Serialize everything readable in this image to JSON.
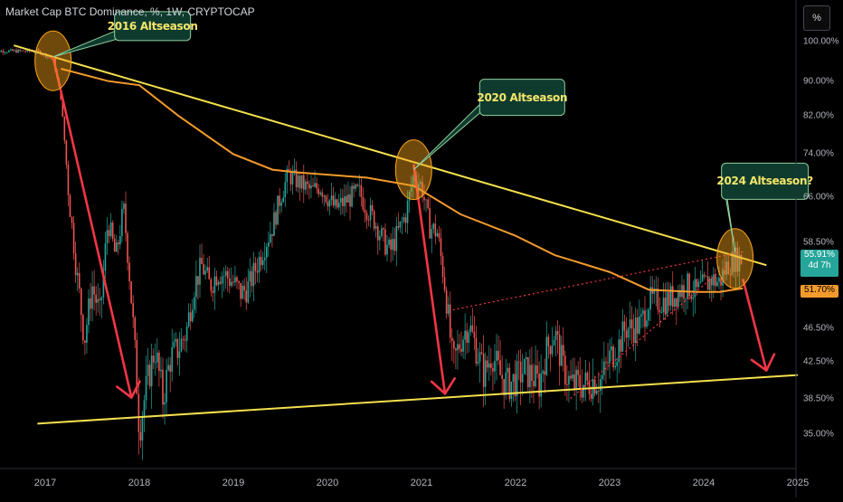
{
  "header": {
    "title": "Market Cap BTC Dominance, %, 1W, CRYPTOCAP",
    "scale_button": "%"
  },
  "last_price": {
    "value": "55.91%",
    "countdown": "4d 7h",
    "ma_value": "51.70%"
  },
  "colors": {
    "background": "#000000",
    "up_candle": "#26a69a",
    "down_candle": "#ef5350",
    "trendline": "#f4e04d",
    "moving_average": "#f39a2c",
    "arrow": "#f23645",
    "callout_fill": "#0f3b2e",
    "callout_border": "#8fd19e",
    "callout_text": "#f5e66a",
    "highlight_circle": "#f7a21b"
  },
  "chart_data": {
    "type": "candlestick",
    "title": "Market Cap BTC Dominance, %, 1W, CRYPTOCAP",
    "ylim": [
      33.8,
      103
    ],
    "yscale": "log",
    "y_ticks": [
      "100.00%",
      "90.00%",
      "82.00%",
      "74.00%",
      "66.00%",
      "58.50%",
      "46.50%",
      "42.50%",
      "38.50%",
      "35.00%"
    ],
    "x_ticks": [
      "2017",
      "2018",
      "2019",
      "2020",
      "2021",
      "2022",
      "2023",
      "2024",
      "2025"
    ],
    "close_series": [
      [
        "2016-06",
        97.5
      ],
      [
        "2016-12",
        97.5
      ],
      [
        "2017-02",
        95.5
      ],
      [
        "2017-03",
        86
      ],
      [
        "2017-04",
        66
      ],
      [
        "2017-05",
        54
      ],
      [
        "2017-06",
        45
      ],
      [
        "2017-07",
        52
      ],
      [
        "2017-08",
        48
      ],
      [
        "2017-09",
        62
      ],
      [
        "2017-10",
        56
      ],
      [
        "2017-11",
        64
      ],
      [
        "2017-12",
        50
      ],
      [
        "2018-01",
        35.5
      ],
      [
        "2018-02",
        40
      ],
      [
        "2018-03",
        44
      ],
      [
        "2018-04",
        38.5
      ],
      [
        "2018-05",
        43
      ],
      [
        "2018-06",
        44
      ],
      [
        "2018-07",
        46
      ],
      [
        "2018-08",
        52
      ],
      [
        "2018-09",
        55
      ],
      [
        "2018-10",
        52
      ],
      [
        "2018-11",
        54
      ],
      [
        "2018-12",
        53.5
      ],
      [
        "2019-01",
        52.5
      ],
      [
        "2019-02",
        51
      ],
      [
        "2019-03",
        52
      ],
      [
        "2019-04",
        55
      ],
      [
        "2019-05",
        58
      ],
      [
        "2019-06",
        61
      ],
      [
        "2019-07",
        66
      ],
      [
        "2019-08",
        70
      ],
      [
        "2019-09",
        69
      ],
      [
        "2019-10",
        68
      ],
      [
        "2019-11",
        67
      ],
      [
        "2019-12",
        68
      ],
      [
        "2020-01",
        66
      ],
      [
        "2020-02",
        64
      ],
      [
        "2020-03",
        65
      ],
      [
        "2020-04",
        66
      ],
      [
        "2020-05",
        67
      ],
      [
        "2020-06",
        64
      ],
      [
        "2020-07",
        62
      ],
      [
        "2020-08",
        59
      ],
      [
        "2020-09",
        57
      ],
      [
        "2020-10",
        60
      ],
      [
        "2020-11",
        63
      ],
      [
        "2020-12",
        70
      ],
      [
        "2021-01",
        68
      ],
      [
        "2021-02",
        61
      ],
      [
        "2021-03",
        60
      ],
      [
        "2021-04",
        52
      ],
      [
        "2021-05",
        42
      ],
      [
        "2021-06",
        45
      ],
      [
        "2021-07",
        47
      ],
      [
        "2021-08",
        44
      ],
      [
        "2021-09",
        41
      ],
      [
        "2021-10",
        43.5
      ],
      [
        "2021-11",
        41
      ],
      [
        "2021-12",
        40
      ],
      [
        "2022-01",
        40.5
      ],
      [
        "2022-02",
        41.5
      ],
      [
        "2022-03",
        41
      ],
      [
        "2022-04",
        40
      ],
      [
        "2022-05",
        44
      ],
      [
        "2022-06",
        46
      ],
      [
        "2022-07",
        42
      ],
      [
        "2022-08",
        40
      ],
      [
        "2022-09",
        40
      ],
      [
        "2022-10",
        40
      ],
      [
        "2022-11",
        40.5
      ],
      [
        "2022-12",
        40.5
      ],
      [
        "2023-01",
        43
      ],
      [
        "2023-02",
        44
      ],
      [
        "2023-03",
        46.5
      ],
      [
        "2023-04",
        46.5
      ],
      [
        "2023-05",
        47
      ],
      [
        "2023-06",
        50
      ],
      [
        "2023-07",
        50
      ],
      [
        "2023-08",
        50
      ],
      [
        "2023-09",
        50.5
      ],
      [
        "2023-10",
        51.5
      ],
      [
        "2023-11",
        52
      ],
      [
        "2023-12",
        51
      ],
      [
        "2024-01",
        52
      ],
      [
        "2024-02",
        53
      ],
      [
        "2024-03",
        52.5
      ],
      [
        "2024-04",
        55
      ],
      [
        "2024-05",
        56
      ],
      [
        "2024-06",
        55.9
      ]
    ],
    "moving_average": [
      [
        "2017-03",
        93
      ],
      [
        "2017-09",
        90
      ],
      [
        "2018-01",
        89
      ],
      [
        "2018-06",
        82
      ],
      [
        "2019-01",
        74
      ],
      [
        "2019-06",
        71
      ],
      [
        "2019-09",
        70.5
      ],
      [
        "2020-06",
        69.5
      ],
      [
        "2020-12",
        68
      ],
      [
        "2021-06",
        63
      ],
      [
        "2022-01",
        59.5
      ],
      [
        "2022-06",
        56.5
      ],
      [
        "2023-01",
        54
      ],
      [
        "2023-06",
        51.5
      ],
      [
        "2023-12",
        51.2
      ],
      [
        "2024-03",
        51.2
      ],
      [
        "2024-06",
        51.7
      ]
    ],
    "trendlines": [
      {
        "name": "upper",
        "from": [
          "2016-09",
          99
        ],
        "to": [
          "2024-09",
          55
        ]
      },
      {
        "name": "lower",
        "from": [
          "2016-12",
          36
        ],
        "to": [
          "2025-01",
          41
        ]
      }
    ],
    "dotted_lines": [
      {
        "from": [
          "2021-05",
          48.8
        ],
        "to": [
          "2024-06",
          57
        ]
      },
      {
        "from": [
          "2022-08",
          38.5
        ],
        "to": [
          "2024-04",
          55
        ]
      }
    ],
    "arrows": [
      {
        "from": [
          "2017-02",
          96
        ],
        "to": [
          "2017-12",
          38.6
        ]
      },
      {
        "from": [
          "2020-12",
          72
        ],
        "to": [
          "2021-04",
          39
        ]
      },
      {
        "from": [
          "2024-06",
          53
        ],
        "to": [
          "2024-09",
          41.5
        ]
      }
    ],
    "highlights": [
      {
        "at": [
          "2017-02",
          95
        ]
      },
      {
        "at": [
          "2020-12",
          71
        ]
      },
      {
        "at": [
          "2024-05",
          56
        ]
      }
    ],
    "annotations": [
      {
        "text": "2016 Altseason",
        "anchor": [
          "2017-02",
          96
        ]
      },
      {
        "text": "2020 Altseason",
        "anchor": [
          "2020-12",
          71
        ]
      },
      {
        "text": "2024 Altseason?",
        "anchor": [
          "2024-05",
          57
        ]
      }
    ]
  }
}
